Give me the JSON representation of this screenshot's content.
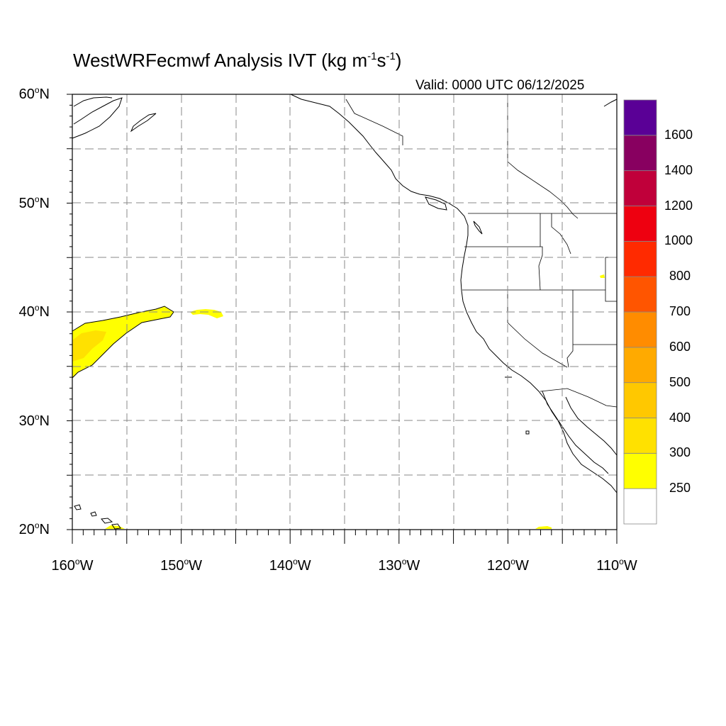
{
  "title": {
    "main": "WestWRFecmwf Analysis IVT (kg m",
    "exp1": "-1",
    "mid": "s",
    "exp2": "-1",
    "end": ")"
  },
  "valid_time": "Valid: 0000 UTC 06/12/2025",
  "lat_ticks": [
    {
      "deg": "60",
      "dir": "N",
      "lat": 60
    },
    {
      "deg": "50",
      "dir": "N",
      "lat": 50
    },
    {
      "deg": "40",
      "dir": "N",
      "lat": 40
    },
    {
      "deg": "30",
      "dir": "N",
      "lat": 30
    },
    {
      "deg": "20",
      "dir": "N",
      "lat": 20
    }
  ],
  "lon_ticks": [
    {
      "deg": "160",
      "dir": "W",
      "lon": -160
    },
    {
      "deg": "150",
      "dir": "W",
      "lon": -150
    },
    {
      "deg": "140",
      "dir": "W",
      "lon": -140
    },
    {
      "deg": "130",
      "dir": "W",
      "lon": -130
    },
    {
      "deg": "120",
      "dir": "W",
      "lon": -120
    },
    {
      "deg": "110",
      "dir": "W",
      "lon": -110
    }
  ],
  "map_extent": {
    "lon_min": -160,
    "lon_max": -110,
    "lat_min": 20,
    "lat_max": 60
  },
  "colorbar": {
    "levels": [
      "250",
      "300",
      "400",
      "500",
      "600",
      "700",
      "800",
      "1000",
      "1200",
      "1400",
      "1600"
    ],
    "colors": [
      "#ffffff",
      "#ffff00",
      "#ffe100",
      "#ffc800",
      "#ffaa00",
      "#ff8c00",
      "#ff5500",
      "#ff2a00",
      "#ee0010",
      "#c0003a",
      "#880060",
      "#5a0096"
    ]
  },
  "coastline_color": "#000000",
  "border_color": "#000000",
  "grid_color": "#888888"
}
